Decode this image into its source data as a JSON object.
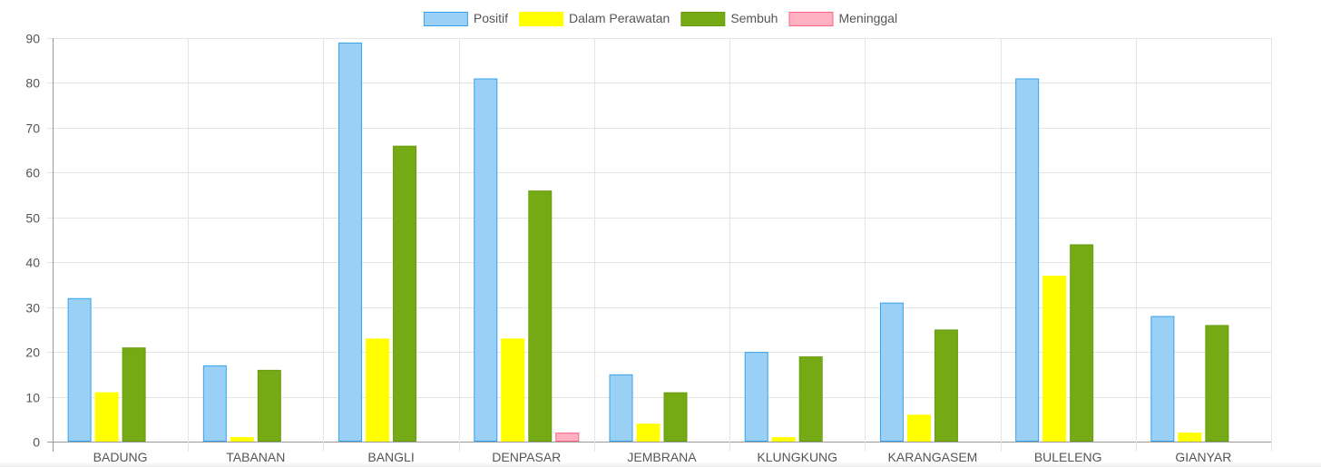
{
  "chart_data": {
    "type": "bar",
    "categories": [
      "BADUNG",
      "TABANAN",
      "BANGLI",
      "DENPASAR",
      "JEMBRANA",
      "KLUNGKUNG",
      "KARANGASEM",
      "BULELENG",
      "GIANYAR"
    ],
    "series": [
      {
        "name": "Positif",
        "fill": "#9ad0f5",
        "stroke": "#36a2eb",
        "values": [
          32,
          17,
          89,
          81,
          15,
          20,
          31,
          81,
          28
        ]
      },
      {
        "name": "Dalam Perawatan",
        "fill": "#ffff00",
        "stroke": "#ffff00",
        "values": [
          11,
          1,
          23,
          23,
          4,
          1,
          6,
          37,
          2
        ]
      },
      {
        "name": "Sembuh",
        "fill": "#75aa14",
        "stroke": "#6a9c12",
        "values": [
          21,
          16,
          66,
          56,
          11,
          19,
          25,
          44,
          26
        ]
      },
      {
        "name": "Meninggal",
        "fill": "#ffb1c1",
        "stroke": "#ff6384",
        "values": [
          0,
          0,
          0,
          2,
          0,
          0,
          0,
          0,
          0
        ]
      }
    ],
    "ylim": [
      0,
      90
    ],
    "yticks": [
      "0",
      "10",
      "20",
      "30",
      "40",
      "50",
      "60",
      "70",
      "80",
      "90"
    ],
    "grid": true,
    "legend_position": "top",
    "title": "",
    "xlabel": "",
    "ylabel": ""
  }
}
